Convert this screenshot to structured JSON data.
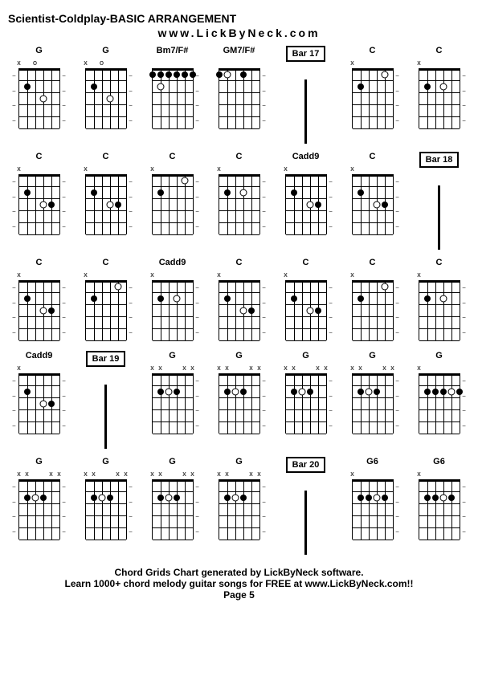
{
  "title": "Scientist-Coldplay-BASIC ARRANGEMENT",
  "url": "www.LickByNeck.com",
  "footer_line1": "Chord Grids Chart generated by LickByNeck software.",
  "footer_line2": "Learn 1000+ chord melody guitar songs for FREE at www.LickByNeck.com!!",
  "page": "Page 5",
  "colors": {
    "background": "#ffffff",
    "line": "#000000",
    "text": "#000000"
  },
  "fretboard": {
    "strings": 6,
    "frets": 5,
    "string_spacing": 10,
    "fret_spacing": 15
  },
  "cells": [
    {
      "type": "chord",
      "name": "G",
      "markers": [
        "x",
        "",
        "o",
        "",
        "",
        ""
      ],
      "dots": [
        {
          "s": 1,
          "f": 2
        },
        {
          "s": 3,
          "f": 3,
          "open": true
        }
      ],
      "dashL": true
    },
    {
      "type": "chord",
      "name": "G",
      "markers": [
        "x",
        "",
        "o",
        "",
        "",
        ""
      ],
      "dots": [
        {
          "s": 1,
          "f": 2
        },
        {
          "s": 3,
          "f": 3,
          "open": true
        }
      ]
    },
    {
      "type": "chord",
      "name": "Bm7/F#",
      "markers": [
        "",
        "",
        "",
        "",
        "",
        ""
      ],
      "dots": [
        {
          "s": 0,
          "f": 1
        },
        {
          "s": 1,
          "f": 1
        },
        {
          "s": 2,
          "f": 1
        },
        {
          "s": 3,
          "f": 1
        },
        {
          "s": 4,
          "f": 1
        },
        {
          "s": 5,
          "f": 1
        },
        {
          "s": 1,
          "f": 2,
          "open": true
        }
      ]
    },
    {
      "type": "chord",
      "name": "GM7/F#",
      "markers": [
        "",
        "",
        "",
        "",
        "",
        ""
      ],
      "dots": [
        {
          "s": 0,
          "f": 1
        },
        {
          "s": 1,
          "f": 1,
          "open": true
        },
        {
          "s": 3,
          "f": 1
        }
      ]
    },
    {
      "type": "bar",
      "label": "Bar 17"
    },
    {
      "type": "chord",
      "name": "C",
      "markers": [
        "x",
        "",
        "",
        "",
        "",
        ""
      ],
      "dots": [
        {
          "s": 1,
          "f": 2
        },
        {
          "s": 4,
          "f": 1,
          "open": true
        }
      ]
    },
    {
      "type": "chord",
      "name": "C",
      "markers": [
        "x",
        "",
        "",
        "",
        "",
        ""
      ],
      "dots": [
        {
          "s": 1,
          "f": 2
        },
        {
          "s": 3,
          "f": 2,
          "open": true
        }
      ]
    },
    {
      "type": "chord",
      "name": "C",
      "markers": [
        "x",
        "",
        "",
        "",
        "",
        ""
      ],
      "dots": [
        {
          "s": 1,
          "f": 2
        },
        {
          "s": 3,
          "f": 3,
          "open": true
        },
        {
          "s": 4,
          "f": 3
        }
      ],
      "dashL": true
    },
    {
      "type": "chord",
      "name": "C",
      "markers": [
        "x",
        "",
        "",
        "",
        "",
        ""
      ],
      "dots": [
        {
          "s": 1,
          "f": 2
        },
        {
          "s": 3,
          "f": 3,
          "open": true
        },
        {
          "s": 4,
          "f": 3
        }
      ]
    },
    {
      "type": "chord",
      "name": "C",
      "markers": [
        "x",
        "",
        "",
        "",
        "",
        ""
      ],
      "dots": [
        {
          "s": 1,
          "f": 2
        },
        {
          "s": 4,
          "f": 1,
          "open": true
        }
      ]
    },
    {
      "type": "chord",
      "name": "C",
      "markers": [
        "x",
        "",
        "",
        "",
        "",
        ""
      ],
      "dots": [
        {
          "s": 1,
          "f": 2
        },
        {
          "s": 3,
          "f": 2,
          "open": true
        }
      ]
    },
    {
      "type": "chord",
      "name": "Cadd9",
      "markers": [
        "x",
        "",
        "",
        "",
        "",
        ""
      ],
      "dots": [
        {
          "s": 1,
          "f": 2
        },
        {
          "s": 3,
          "f": 3,
          "open": true
        },
        {
          "s": 4,
          "f": 3
        }
      ]
    },
    {
      "type": "chord",
      "name": "C",
      "markers": [
        "x",
        "",
        "",
        "",
        "",
        ""
      ],
      "dots": [
        {
          "s": 1,
          "f": 2
        },
        {
          "s": 3,
          "f": 3,
          "open": true
        },
        {
          "s": 4,
          "f": 3
        }
      ]
    },
    {
      "type": "bar",
      "label": "Bar 18"
    },
    {
      "type": "chord",
      "name": "C",
      "markers": [
        "x",
        "",
        "",
        "",
        "",
        ""
      ],
      "dots": [
        {
          "s": 1,
          "f": 2
        },
        {
          "s": 3,
          "f": 3,
          "open": true
        },
        {
          "s": 4,
          "f": 3
        }
      ],
      "dashL": true
    },
    {
      "type": "chord",
      "name": "C",
      "markers": [
        "x",
        "",
        "",
        "",
        "",
        ""
      ],
      "dots": [
        {
          "s": 1,
          "f": 2
        },
        {
          "s": 4,
          "f": 1,
          "open": true
        }
      ]
    },
    {
      "type": "chord",
      "name": "Cadd9",
      "markers": [
        "x",
        "",
        "",
        "",
        "",
        ""
      ],
      "dots": [
        {
          "s": 1,
          "f": 2
        },
        {
          "s": 3,
          "f": 2,
          "open": true
        }
      ]
    },
    {
      "type": "chord",
      "name": "C",
      "markers": [
        "x",
        "",
        "",
        "",
        "",
        ""
      ],
      "dots": [
        {
          "s": 1,
          "f": 2
        },
        {
          "s": 3,
          "f": 3,
          "open": true
        },
        {
          "s": 4,
          "f": 3
        }
      ]
    },
    {
      "type": "chord",
      "name": "C",
      "markers": [
        "x",
        "",
        "",
        "",
        "",
        ""
      ],
      "dots": [
        {
          "s": 1,
          "f": 2
        },
        {
          "s": 3,
          "f": 3,
          "open": true
        },
        {
          "s": 4,
          "f": 3
        }
      ]
    },
    {
      "type": "chord",
      "name": "C",
      "markers": [
        "x",
        "",
        "",
        "",
        "",
        ""
      ],
      "dots": [
        {
          "s": 1,
          "f": 2
        },
        {
          "s": 4,
          "f": 1,
          "open": true
        }
      ]
    },
    {
      "type": "chord",
      "name": "C",
      "markers": [
        "x",
        "",
        "",
        "",
        "",
        ""
      ],
      "dots": [
        {
          "s": 1,
          "f": 2
        },
        {
          "s": 3,
          "f": 2,
          "open": true
        }
      ]
    },
    {
      "type": "chord",
      "name": "Cadd9",
      "markers": [
        "x",
        "",
        "",
        "",
        "",
        ""
      ],
      "dots": [
        {
          "s": 1,
          "f": 2
        },
        {
          "s": 3,
          "f": 3,
          "open": true
        },
        {
          "s": 4,
          "f": 3
        }
      ],
      "dashL": true
    },
    {
      "type": "bar",
      "label": "Bar 19"
    },
    {
      "type": "chord",
      "name": "G",
      "markers": [
        "x",
        "x",
        "",
        "",
        "x",
        "x"
      ],
      "dots": [
        {
          "s": 1,
          "f": 2
        },
        {
          "s": 2,
          "f": 2,
          "open": true
        },
        {
          "s": 3,
          "f": 2
        }
      ]
    },
    {
      "type": "chord",
      "name": "G",
      "markers": [
        "x",
        "x",
        "",
        "",
        "x",
        "x"
      ],
      "dots": [
        {
          "s": 1,
          "f": 2
        },
        {
          "s": 2,
          "f": 2,
          "open": true
        },
        {
          "s": 3,
          "f": 2
        }
      ]
    },
    {
      "type": "chord",
      "name": "G",
      "markers": [
        "x",
        "x",
        "",
        "",
        "x",
        "x"
      ],
      "dots": [
        {
          "s": 1,
          "f": 2
        },
        {
          "s": 2,
          "f": 2,
          "open": true
        },
        {
          "s": 3,
          "f": 2
        }
      ]
    },
    {
      "type": "chord",
      "name": "G",
      "markers": [
        "x",
        "x",
        "",
        "",
        "x",
        "x"
      ],
      "dots": [
        {
          "s": 1,
          "f": 2
        },
        {
          "s": 2,
          "f": 2,
          "open": true
        },
        {
          "s": 3,
          "f": 2
        }
      ]
    },
    {
      "type": "chord",
      "name": "G",
      "markers": [
        "x",
        "",
        "",
        "",
        "",
        ""
      ],
      "dots": [
        {
          "s": 1,
          "f": 2
        },
        {
          "s": 2,
          "f": 2
        },
        {
          "s": 3,
          "f": 2
        },
        {
          "s": 4,
          "f": 2,
          "open": true
        },
        {
          "s": 5,
          "f": 2
        }
      ]
    },
    {
      "type": "chord",
      "name": "G",
      "markers": [
        "x",
        "x",
        "",
        "",
        "x",
        "x"
      ],
      "dots": [
        {
          "s": 1,
          "f": 2
        },
        {
          "s": 2,
          "f": 2,
          "open": true
        },
        {
          "s": 3,
          "f": 2
        }
      ],
      "dashL": true
    },
    {
      "type": "chord",
      "name": "G",
      "markers": [
        "x",
        "x",
        "",
        "",
        "x",
        "x"
      ],
      "dots": [
        {
          "s": 1,
          "f": 2
        },
        {
          "s": 2,
          "f": 2,
          "open": true
        },
        {
          "s": 3,
          "f": 2
        }
      ]
    },
    {
      "type": "chord",
      "name": "G",
      "markers": [
        "x",
        "x",
        "",
        "",
        "x",
        "x"
      ],
      "dots": [
        {
          "s": 1,
          "f": 2
        },
        {
          "s": 2,
          "f": 2,
          "open": true
        },
        {
          "s": 3,
          "f": 2
        }
      ]
    },
    {
      "type": "chord",
      "name": "G",
      "markers": [
        "x",
        "x",
        "",
        "",
        "x",
        "x"
      ],
      "dots": [
        {
          "s": 1,
          "f": 2
        },
        {
          "s": 2,
          "f": 2,
          "open": true
        },
        {
          "s": 3,
          "f": 2
        }
      ]
    },
    {
      "type": "bar",
      "label": "Bar 20"
    },
    {
      "type": "chord",
      "name": "G6",
      "markers": [
        "x",
        "",
        "",
        "",
        "",
        ""
      ],
      "dots": [
        {
          "s": 1,
          "f": 2
        },
        {
          "s": 2,
          "f": 2
        },
        {
          "s": 3,
          "f": 2,
          "open": true
        },
        {
          "s": 4,
          "f": 2
        }
      ]
    },
    {
      "type": "chord",
      "name": "G6",
      "markers": [
        "x",
        "",
        "",
        "",
        "",
        ""
      ],
      "dots": [
        {
          "s": 1,
          "f": 2
        },
        {
          "s": 2,
          "f": 2
        },
        {
          "s": 3,
          "f": 2,
          "open": true
        },
        {
          "s": 4,
          "f": 2
        }
      ]
    }
  ]
}
